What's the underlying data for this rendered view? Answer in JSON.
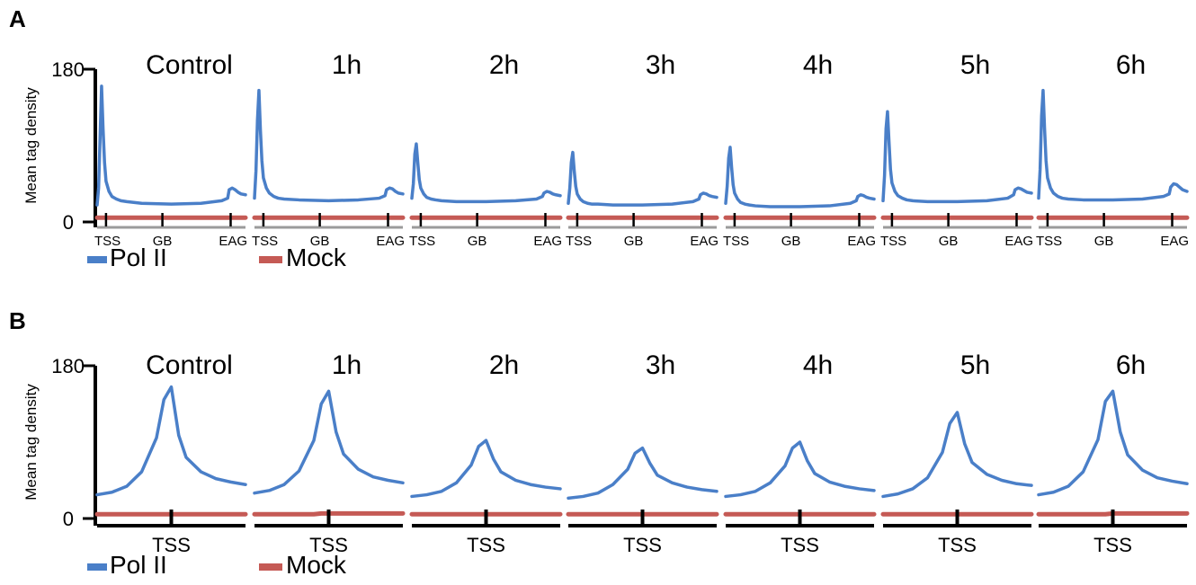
{
  "colors": {
    "pol2": "#4a7fc8",
    "mock": "#c55a55",
    "axis": "#000000",
    "baseline_gray": "#9b9b9b",
    "background": "#ffffff"
  },
  "legend": {
    "pol2_label": "Pol II",
    "mock_label": "Mock"
  },
  "chart_data": [
    {
      "panel_label": "A",
      "type": "line",
      "ylabel": "Mean tag density",
      "ylim": [
        0,
        180
      ],
      "yticks": [
        "0",
        "180"
      ],
      "xtick_labels": [
        "TSS",
        "GB",
        "EAG"
      ],
      "grid": false,
      "legend_position": "bottom-left",
      "subplots": [
        {
          "title": "Control",
          "x": [
            0,
            1,
            2,
            3,
            4,
            5,
            6,
            8,
            10,
            13,
            16,
            20,
            30,
            50,
            70,
            84,
            88,
            89,
            91,
            93,
            95,
            97,
            100
          ],
          "series": [
            {
              "name": "Pol II",
              "values": [
                20,
                40,
                100,
                160,
                110,
                70,
                48,
                36,
                30,
                27,
                25,
                24,
                22,
                21,
                22,
                25,
                28,
                38,
                40,
                38,
                35,
                33,
                32
              ]
            },
            {
              "name": "Mock",
              "values": [
                5,
                5,
                5,
                5,
                5,
                5,
                5,
                5,
                5,
                5,
                5,
                5,
                5,
                5,
                5,
                5,
                5,
                5,
                5,
                5,
                5,
                5,
                5
              ]
            }
          ]
        },
        {
          "title": "1h",
          "x": [
            0,
            1,
            2,
            3,
            4,
            5,
            6,
            8,
            10,
            13,
            16,
            20,
            30,
            50,
            70,
            84,
            88,
            89,
            91,
            93,
            95,
            97,
            100
          ],
          "series": [
            {
              "name": "Pol II",
              "values": [
                28,
                60,
                120,
                155,
                108,
                72,
                52,
                40,
                34,
                30,
                28,
                27,
                26,
                25,
                26,
                28,
                31,
                38,
                40,
                39,
                36,
                34,
                33
              ]
            },
            {
              "name": "Mock",
              "values": [
                5,
                5,
                5,
                5,
                5,
                5,
                5,
                5,
                5,
                5,
                5,
                5,
                5,
                5,
                5,
                5,
                5,
                5,
                5,
                5,
                5,
                5,
                5
              ]
            }
          ]
        },
        {
          "title": "2h",
          "x": [
            0,
            1,
            2,
            3,
            4,
            5,
            6,
            8,
            10,
            13,
            16,
            20,
            30,
            50,
            70,
            84,
            88,
            89,
            91,
            93,
            95,
            97,
            100
          ],
          "series": [
            {
              "name": "Pol II",
              "values": [
                28,
                45,
                80,
                92,
                70,
                50,
                40,
                33,
                29,
                27,
                26,
                25,
                24,
                24,
                25,
                27,
                30,
                34,
                36,
                35,
                33,
                32,
                31
              ]
            },
            {
              "name": "Mock",
              "values": [
                5,
                5,
                5,
                5,
                5,
                5,
                5,
                5,
                5,
                5,
                5,
                5,
                5,
                5,
                5,
                5,
                5,
                5,
                5,
                5,
                5,
                5,
                5
              ]
            }
          ]
        },
        {
          "title": "3h",
          "x": [
            0,
            1,
            2,
            3,
            4,
            5,
            6,
            8,
            10,
            13,
            16,
            20,
            30,
            50,
            70,
            84,
            88,
            89,
            91,
            93,
            95,
            97,
            100
          ],
          "series": [
            {
              "name": "Pol II",
              "values": [
                22,
                40,
                70,
                82,
                60,
                42,
                33,
                27,
                24,
                22,
                21,
                21,
                20,
                20,
                21,
                24,
                27,
                32,
                34,
                33,
                31,
                30,
                29
              ]
            },
            {
              "name": "Mock",
              "values": [
                5,
                5,
                5,
                5,
                5,
                5,
                5,
                5,
                5,
                5,
                5,
                5,
                5,
                5,
                5,
                5,
                5,
                5,
                5,
                5,
                5,
                5,
                5
              ]
            }
          ]
        },
        {
          "title": "4h",
          "x": [
            0,
            1,
            2,
            3,
            4,
            5,
            6,
            8,
            10,
            13,
            16,
            20,
            30,
            50,
            70,
            84,
            88,
            89,
            91,
            93,
            95,
            97,
            100
          ],
          "series": [
            {
              "name": "Pol II",
              "values": [
                22,
                42,
                75,
                88,
                64,
                44,
                34,
                27,
                23,
                21,
                20,
                19,
                18,
                18,
                19,
                22,
                25,
                30,
                32,
                31,
                29,
                28,
                27
              ]
            },
            {
              "name": "Mock",
              "values": [
                5,
                5,
                5,
                5,
                5,
                5,
                5,
                5,
                5,
                5,
                5,
                5,
                5,
                5,
                5,
                5,
                5,
                5,
                5,
                5,
                5,
                5,
                5
              ]
            }
          ]
        },
        {
          "title": "5h",
          "x": [
            0,
            1,
            2,
            3,
            4,
            5,
            6,
            8,
            10,
            13,
            16,
            20,
            30,
            50,
            70,
            84,
            88,
            89,
            91,
            93,
            95,
            97,
            100
          ],
          "series": [
            {
              "name": "Pol II",
              "values": [
                25,
                55,
                110,
                130,
                95,
                62,
                46,
                36,
                31,
                28,
                26,
                25,
                24,
                24,
                25,
                28,
                32,
                38,
                40,
                39,
                37,
                35,
                34
              ]
            },
            {
              "name": "Mock",
              "values": [
                5,
                5,
                5,
                5,
                5,
                5,
                5,
                5,
                5,
                5,
                5,
                5,
                5,
                5,
                5,
                5,
                5,
                5,
                5,
                5,
                5,
                5,
                5
              ]
            }
          ]
        },
        {
          "title": "6h",
          "x": [
            0,
            1,
            2,
            3,
            4,
            5,
            6,
            8,
            10,
            13,
            16,
            20,
            30,
            50,
            70,
            84,
            88,
            89,
            91,
            93,
            95,
            97,
            100
          ],
          "series": [
            {
              "name": "Pol II",
              "values": [
                28,
                62,
                125,
                155,
                110,
                72,
                52,
                40,
                34,
                30,
                28,
                27,
                26,
                26,
                27,
                30,
                33,
                41,
                45,
                44,
                41,
                38,
                36
              ]
            },
            {
              "name": "Mock",
              "values": [
                5,
                5,
                5,
                5,
                5,
                5,
                5,
                5,
                5,
                5,
                5,
                5,
                5,
                5,
                5,
                5,
                5,
                5,
                5,
                5,
                5,
                5,
                5
              ]
            }
          ]
        }
      ]
    },
    {
      "panel_label": "B",
      "type": "line",
      "ylabel": "Mean tag density",
      "ylim": [
        0,
        180
      ],
      "yticks": [
        "0",
        "180"
      ],
      "xtick_labels": [
        "TSS"
      ],
      "grid": false,
      "legend_position": "bottom-left",
      "subplots": [
        {
          "title": "Control",
          "x": [
            -10,
            -8,
            -6,
            -4,
            -2,
            -1,
            0,
            1,
            2,
            4,
            6,
            8,
            10
          ],
          "series": [
            {
              "name": "Pol II",
              "values": [
                28,
                31,
                38,
                55,
                95,
                140,
                155,
                98,
                72,
                55,
                47,
                43,
                40
              ]
            },
            {
              "name": "Mock",
              "values": [
                5,
                5,
                5,
                5,
                5,
                5,
                5,
                5,
                5,
                5,
                5,
                5,
                5
              ]
            }
          ]
        },
        {
          "title": "1h",
          "x": [
            -10,
            -8,
            -6,
            -4,
            -2,
            -1,
            0,
            1,
            2,
            4,
            6,
            8,
            10
          ],
          "series": [
            {
              "name": "Pol II",
              "values": [
                30,
                33,
                40,
                56,
                92,
                135,
                150,
                102,
                76,
                58,
                49,
                45,
                42
              ]
            },
            {
              "name": "Mock",
              "values": [
                5,
                5,
                5,
                5,
                5,
                6,
                6,
                6,
                6,
                6,
                6,
                6,
                6
              ]
            }
          ]
        },
        {
          "title": "2h",
          "x": [
            -10,
            -8,
            -6,
            -4,
            -2,
            -1,
            0,
            1,
            2,
            4,
            6,
            8,
            10
          ],
          "series": [
            {
              "name": "Pol II",
              "values": [
                26,
                28,
                32,
                42,
                63,
                85,
                92,
                70,
                55,
                45,
                40,
                37,
                35
              ]
            },
            {
              "name": "Mock",
              "values": [
                5,
                5,
                5,
                5,
                5,
                5,
                5,
                5,
                5,
                5,
                5,
                5,
                5
              ]
            }
          ]
        },
        {
          "title": "3h",
          "x": [
            -10,
            -8,
            -6,
            -4,
            -2,
            -1,
            0,
            1,
            2,
            4,
            6,
            8,
            10
          ],
          "series": [
            {
              "name": "Pol II",
              "values": [
                24,
                26,
                30,
                40,
                58,
                77,
                83,
                65,
                51,
                42,
                37,
                34,
                32
              ]
            },
            {
              "name": "Mock",
              "values": [
                5,
                5,
                5,
                5,
                5,
                5,
                5,
                5,
                5,
                5,
                5,
                5,
                5
              ]
            }
          ]
        },
        {
          "title": "4h",
          "x": [
            -10,
            -8,
            -6,
            -4,
            -2,
            -1,
            0,
            1,
            2,
            4,
            6,
            8,
            10
          ],
          "series": [
            {
              "name": "Pol II",
              "values": [
                26,
                28,
                32,
                42,
                62,
                83,
                90,
                68,
                53,
                43,
                38,
                35,
                33
              ]
            },
            {
              "name": "Mock",
              "values": [
                5,
                5,
                5,
                5,
                5,
                5,
                5,
                5,
                5,
                5,
                5,
                5,
                5
              ]
            }
          ]
        },
        {
          "title": "5h",
          "x": [
            -10,
            -8,
            -6,
            -4,
            -2,
            -1,
            0,
            1,
            2,
            4,
            6,
            8,
            10
          ],
          "series": [
            {
              "name": "Pol II",
              "values": [
                26,
                29,
                35,
                48,
                78,
                112,
                125,
                88,
                66,
                52,
                45,
                41,
                39
              ]
            },
            {
              "name": "Mock",
              "values": [
                5,
                5,
                5,
                5,
                5,
                5,
                5,
                5,
                5,
                5,
                5,
                5,
                5
              ]
            }
          ]
        },
        {
          "title": "6h",
          "x": [
            -10,
            -8,
            -6,
            -4,
            -2,
            -1,
            0,
            1,
            2,
            4,
            6,
            8,
            10
          ],
          "series": [
            {
              "name": "Pol II",
              "values": [
                28,
                31,
                38,
                55,
                93,
                138,
                150,
                102,
                75,
                57,
                48,
                44,
                41
              ]
            },
            {
              "name": "Mock",
              "values": [
                5,
                5,
                5,
                5,
                5,
                5,
                6,
                6,
                6,
                6,
                6,
                6,
                6
              ]
            }
          ]
        }
      ]
    }
  ]
}
